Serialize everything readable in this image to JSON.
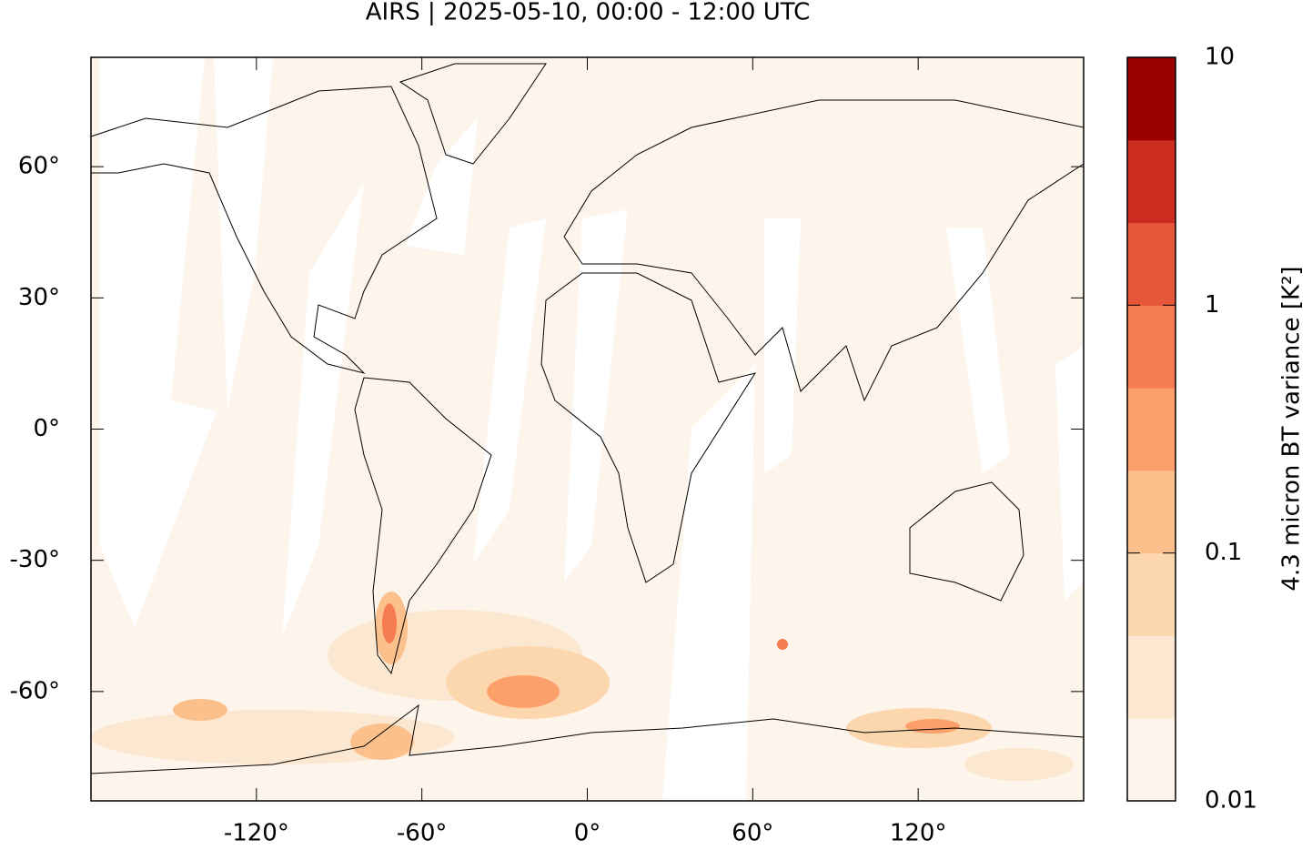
{
  "chart_data": {
    "type": "map",
    "title": "AIRS | 2025-05-10, 00:00 - 12:00 UTC",
    "xlim": [
      -180,
      180
    ],
    "ylim": [
      -85,
      85
    ],
    "xticks": [
      {
        "value": -120,
        "label": "-120°"
      },
      {
        "value": -60,
        "label": "-60°"
      },
      {
        "value": 0,
        "label": "0°"
      },
      {
        "value": 60,
        "label": "60°"
      },
      {
        "value": 120,
        "label": "120°"
      }
    ],
    "yticks": [
      {
        "value": -60,
        "label": "-60°"
      },
      {
        "value": -30,
        "label": "-30°"
      },
      {
        "value": 0,
        "label": "0°"
      },
      {
        "value": 30,
        "label": "30°"
      },
      {
        "value": 60,
        "label": "60°"
      }
    ],
    "background_color": "#fdf5eb",
    "colorbar": {
      "label": "4.3 micron BT variance [K²]",
      "log": true,
      "lim": [
        0.01,
        10
      ],
      "ticks": [
        0.01,
        0.1,
        1,
        10
      ],
      "colors": [
        "#fdf5eb",
        "#fce8d0",
        "#fcd6ac",
        "#fcc08d",
        "#fc9f6a",
        "#f57c52",
        "#e65639",
        "#cc2d20",
        "#9b0000"
      ]
    }
  }
}
